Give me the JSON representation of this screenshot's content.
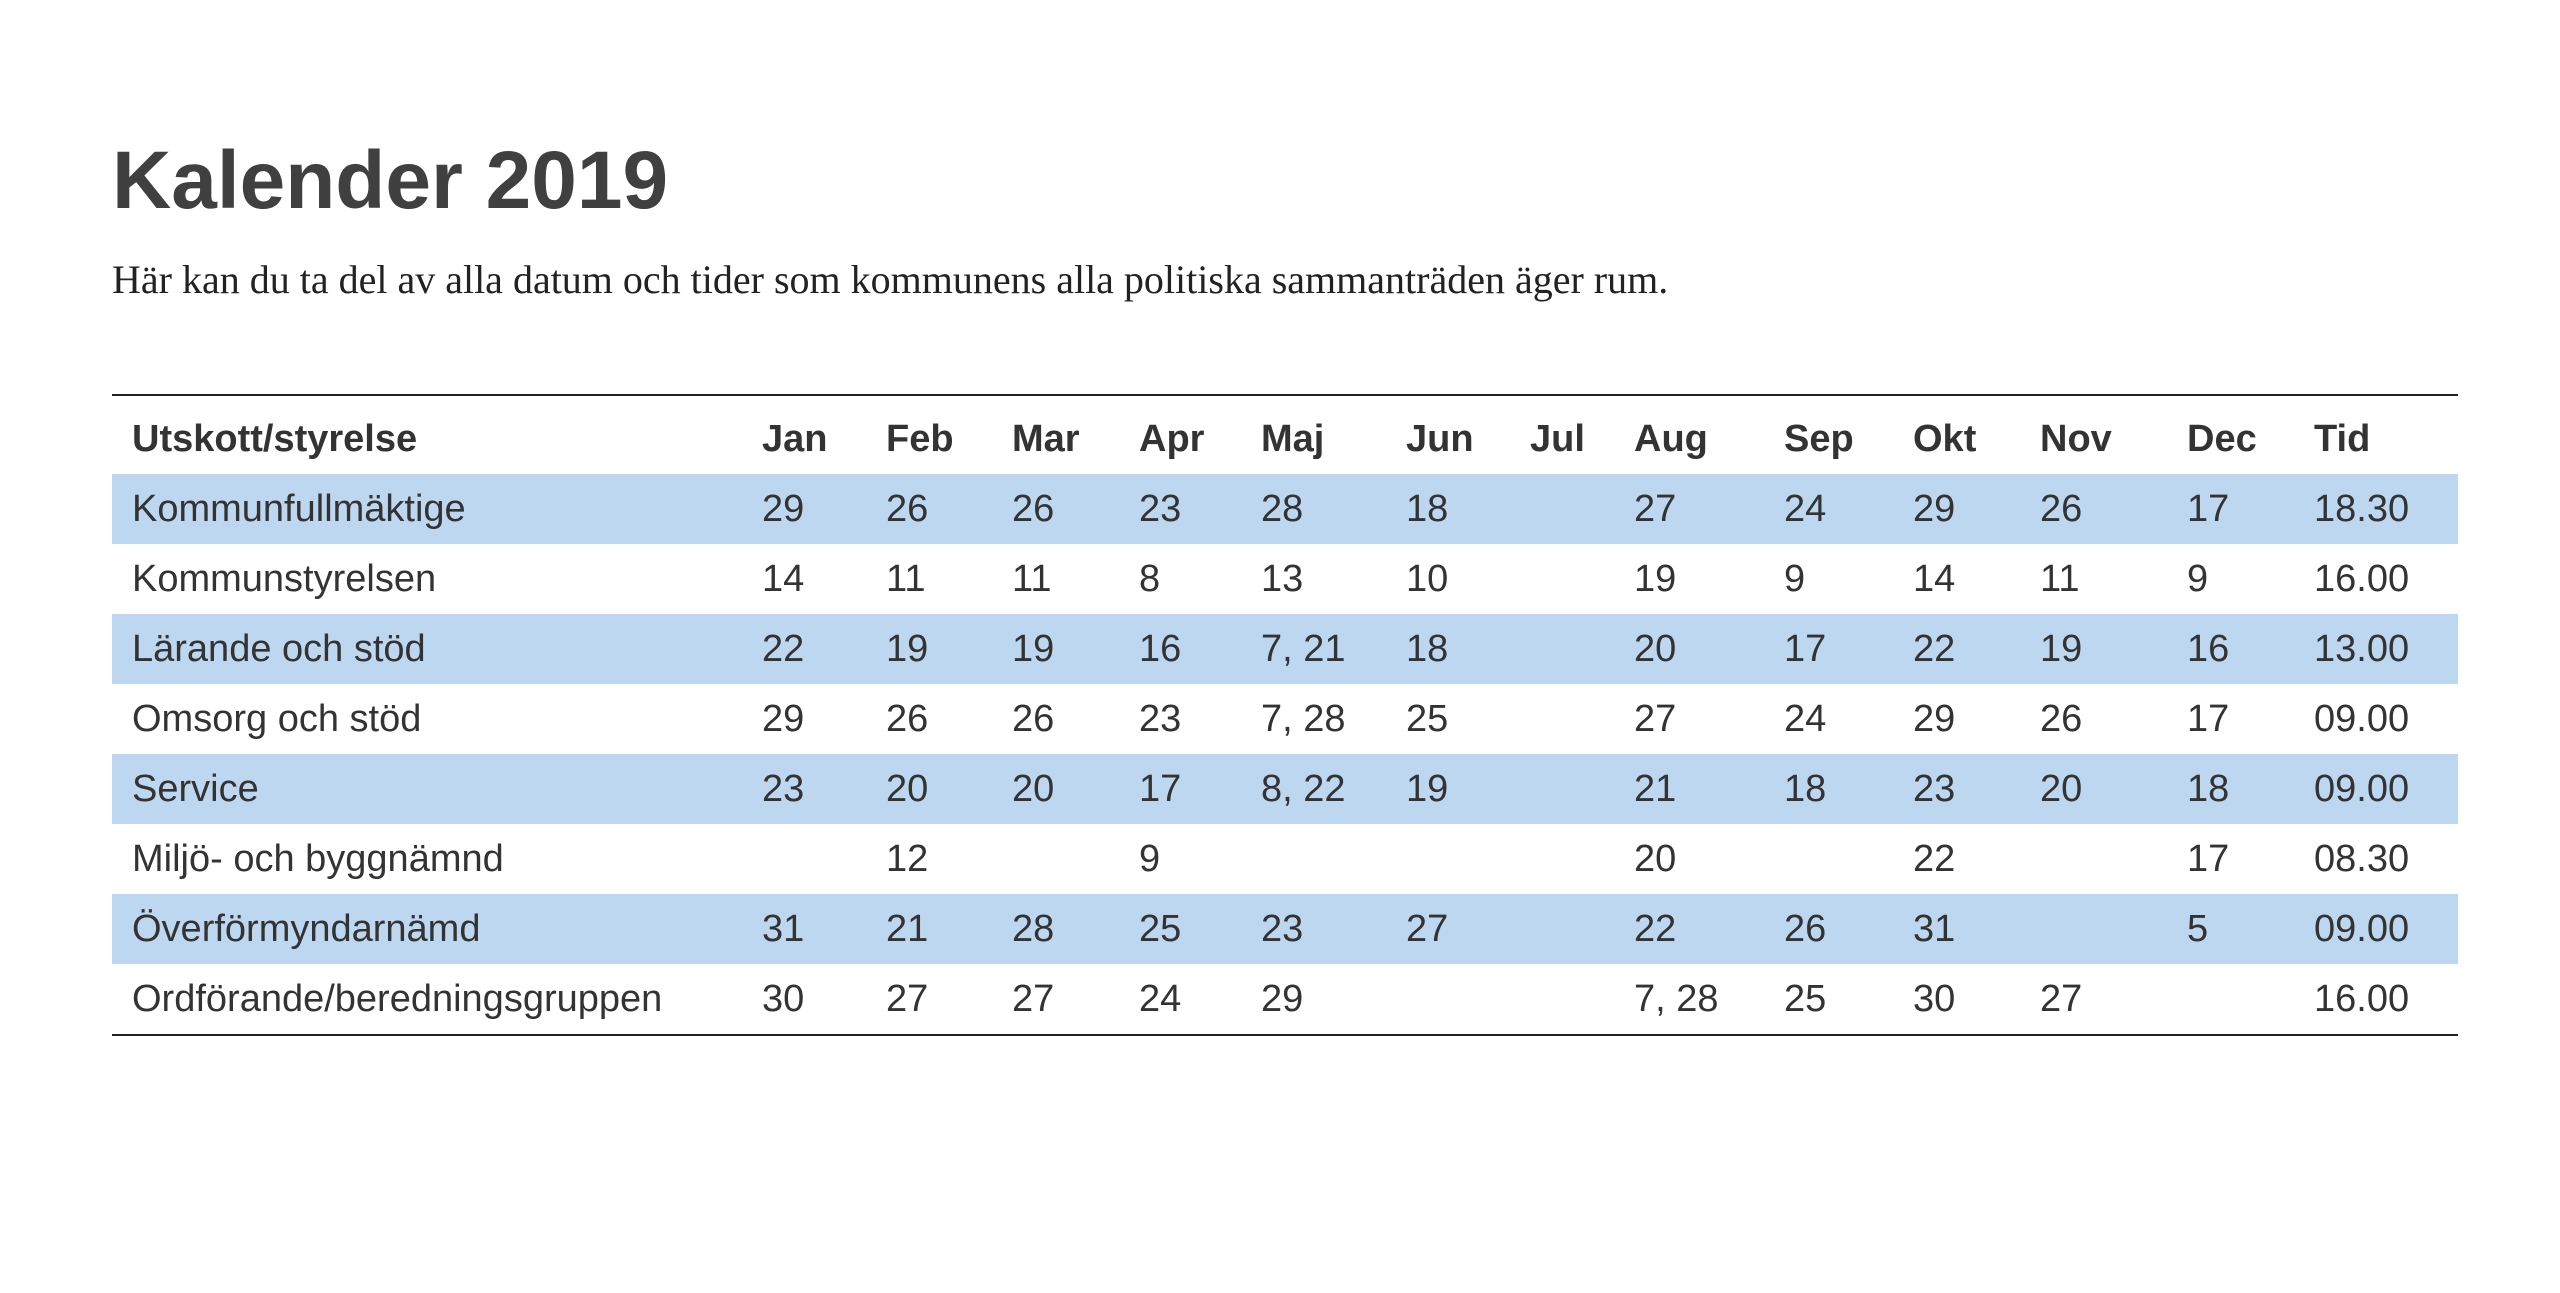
{
  "title": "Kalender 2019",
  "subtitle": "Här kan du ta del av alla datum och tider som kommunens alla politiska sammanträden äger rum.",
  "colors": {
    "title": "#404040",
    "row_shade": "#bdd7f1",
    "rule": "#222222"
  },
  "table": {
    "headers": [
      "Utskott/styrelse",
      "Jan",
      "Feb",
      "Mar",
      "Apr",
      "Maj",
      "Jun",
      "Jul",
      "Aug",
      "Sep",
      "Okt",
      "Nov",
      "Dec",
      "Tid"
    ],
    "rows": [
      [
        "Kommunfullmäktige",
        "29",
        "26",
        "26",
        "23",
        "28",
        "18",
        "",
        "27",
        "24",
        "29",
        "26",
        "17",
        "18.30"
      ],
      [
        "Kommunstyrelsen",
        "14",
        "11",
        "11",
        "8",
        "13",
        "10",
        "",
        "19",
        "9",
        "14",
        "11",
        "9",
        "16.00"
      ],
      [
        "Lärande och stöd",
        "22",
        "19",
        "19",
        "16",
        "7, 21",
        "18",
        "",
        "20",
        "17",
        "22",
        "19",
        "16",
        "13.00"
      ],
      [
        "Omsorg och stöd",
        "29",
        "26",
        "26",
        "23",
        "7, 28",
        "25",
        "",
        "27",
        "24",
        "29",
        "26",
        "17",
        "09.00"
      ],
      [
        "Service",
        "23",
        "20",
        "20",
        "17",
        "8, 22",
        "19",
        "",
        "21",
        "18",
        "23",
        "20",
        "18",
        "09.00"
      ],
      [
        "Miljö- och byggnämnd",
        "",
        "12",
        "",
        "9",
        "",
        "",
        "",
        "20",
        "",
        "22",
        "",
        "17",
        "08.30"
      ],
      [
        "Överförmyndarnämd",
        "31",
        "21",
        "28",
        "25",
        "23",
        "27",
        "",
        "22",
        "26",
        "31",
        "",
        "5",
        "09.00"
      ],
      [
        "Ordförande/beredningsgruppen",
        "30",
        "27",
        "27",
        "24",
        "29",
        "",
        "",
        "7, 28",
        "25",
        "30",
        "27",
        "",
        "16.00"
      ]
    ]
  }
}
